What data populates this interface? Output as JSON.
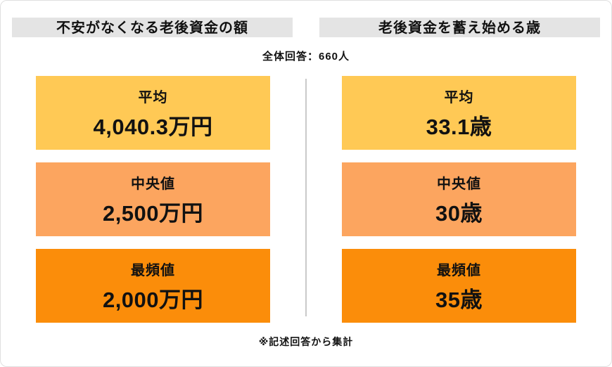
{
  "meta": {
    "respondents_note": "全体回答：660人",
    "footnote": "※記述回答から集計"
  },
  "colors": {
    "average_box": "#ffc955",
    "median_box": "#fca55f",
    "mode_box": "#fb8d0a",
    "header_bar": "#e4e4e4",
    "divider": "#c9c9c9",
    "text": "#111111"
  },
  "chart_data": [
    {
      "type": "table",
      "title": "不安がなくなる老後資金の額",
      "unit": "万円",
      "rows": [
        {
          "label": "平均",
          "value": "4,040.3万円",
          "numeric": 4040.3
        },
        {
          "label": "中央値",
          "value": "2,500万円",
          "numeric": 2500
        },
        {
          "label": "最頻値",
          "value": "2,000万円",
          "numeric": 2000
        }
      ]
    },
    {
      "type": "table",
      "title": "老後資金を蓄え始める歳",
      "unit": "歳",
      "rows": [
        {
          "label": "平均",
          "value": "33.1歳",
          "numeric": 33.1
        },
        {
          "label": "中央値",
          "value": "30歳",
          "numeric": 30
        },
        {
          "label": "最頻値",
          "value": "35歳",
          "numeric": 35
        }
      ]
    }
  ]
}
